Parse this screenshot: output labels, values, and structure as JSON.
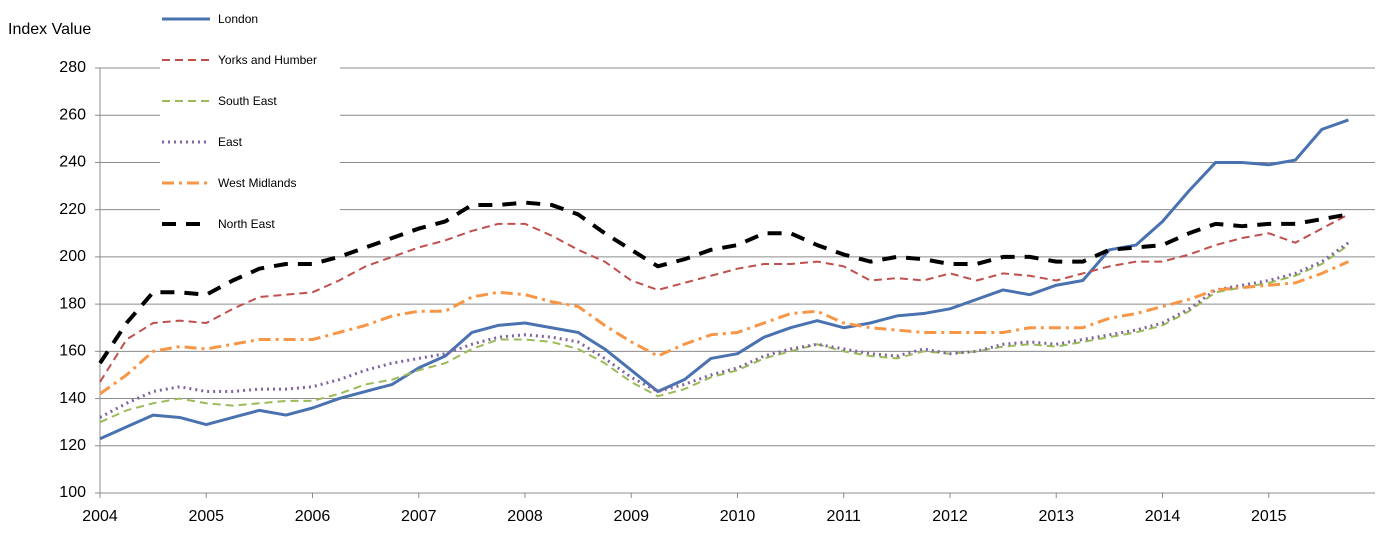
{
  "chart_data": {
    "type": "line",
    "y_label": "Index Value",
    "x": [
      2004,
      2004.25,
      2004.5,
      2004.75,
      2005,
      2005.25,
      2005.5,
      2005.75,
      2006,
      2006.25,
      2006.5,
      2006.75,
      2007,
      2007.25,
      2007.5,
      2007.75,
      2008,
      2008.25,
      2008.5,
      2008.75,
      2009,
      2009.25,
      2009.5,
      2009.75,
      2010,
      2010.25,
      2010.5,
      2010.75,
      2011,
      2011.25,
      2011.5,
      2011.75,
      2012,
      2012.25,
      2012.5,
      2012.75,
      2013,
      2013.25,
      2013.5,
      2013.75,
      2014,
      2014.25,
      2014.5,
      2014.75,
      2015,
      2015.25,
      2015.5,
      2015.75
    ],
    "series": [
      {
        "name": "London",
        "color": "#4a72b0",
        "style": "solid",
        "values": [
          123,
          128,
          133,
          132,
          129,
          132,
          135,
          133,
          136,
          140,
          143,
          146,
          153,
          158,
          168,
          171,
          172,
          170,
          168,
          161,
          152,
          143,
          148,
          157,
          159,
          166,
          170,
          173,
          170,
          172,
          175,
          176,
          178,
          182,
          186,
          184,
          188,
          190,
          203,
          205,
          215,
          228,
          240,
          240,
          239,
          241,
          254,
          258
        ]
      },
      {
        "name": "Yorks and Humber",
        "color": "#c0504d",
        "style": "dashed",
        "values": [
          147,
          165,
          172,
          173,
          172,
          178,
          183,
          184,
          185,
          190,
          196,
          200,
          204,
          207,
          211,
          214,
          214,
          209,
          203,
          198,
          190,
          186,
          189,
          192,
          195,
          197,
          197,
          198,
          196,
          190,
          191,
          190,
          193,
          190,
          193,
          192,
          190,
          193,
          196,
          198,
          198,
          201,
          205,
          208,
          210,
          206,
          212,
          218
        ]
      },
      {
        "name": "South East",
        "color": "#9bbb59",
        "style": "dashed",
        "values": [
          130,
          135,
          138,
          140,
          138,
          137,
          138,
          139,
          139,
          142,
          146,
          148,
          152,
          155,
          161,
          165,
          165,
          164,
          161,
          155,
          147,
          141,
          144,
          149,
          152,
          157,
          160,
          163,
          160,
          158,
          157,
          160,
          159,
          160,
          162,
          163,
          162,
          164,
          166,
          168,
          171,
          177,
          185,
          187,
          189,
          192,
          197,
          205
        ]
      },
      {
        "name": "East",
        "color": "#8064a2",
        "style": "dotted",
        "values": [
          132,
          138,
          143,
          145,
          143,
          143,
          144,
          144,
          145,
          148,
          152,
          155,
          157,
          159,
          163,
          166,
          167,
          166,
          164,
          157,
          149,
          143,
          146,
          150,
          153,
          158,
          161,
          163,
          161,
          159,
          158,
          161,
          159,
          160,
          163,
          164,
          163,
          165,
          167,
          169,
          172,
          178,
          186,
          188,
          190,
          193,
          198,
          206
        ]
      },
      {
        "name": "West Midlands",
        "color": "#f79646",
        "style": "dashdot",
        "values": [
          142,
          150,
          160,
          162,
          161,
          163,
          165,
          165,
          165,
          168,
          171,
          175,
          177,
          177,
          183,
          185,
          184,
          181,
          179,
          171,
          164,
          158,
          163,
          167,
          168,
          172,
          176,
          177,
          172,
          170,
          169,
          168,
          168,
          168,
          168,
          170,
          170,
          170,
          174,
          176,
          179,
          182,
          186,
          187,
          188,
          189,
          193,
          198
        ]
      },
      {
        "name": "North East",
        "color": "#000000",
        "style": "longdash",
        "values": [
          155,
          172,
          185,
          185,
          184,
          190,
          195,
          197,
          197,
          200,
          204,
          208,
          212,
          215,
          222,
          222,
          223,
          222,
          218,
          210,
          203,
          196,
          199,
          203,
          205,
          210,
          210,
          205,
          201,
          198,
          200,
          199,
          197,
          197,
          200,
          200,
          198,
          198,
          203,
          204,
          205,
          210,
          214,
          213,
          214,
          214,
          216,
          218
        ]
      }
    ],
    "xlim": [
      2004,
      2016
    ],
    "xticks": [
      2004,
      2005,
      2006,
      2007,
      2008,
      2009,
      2010,
      2011,
      2012,
      2013,
      2014,
      2015
    ],
    "ylim": [
      100,
      280
    ],
    "yticks": [
      100,
      120,
      140,
      160,
      180,
      200,
      220,
      240,
      260,
      280
    ],
    "grid": true
  }
}
